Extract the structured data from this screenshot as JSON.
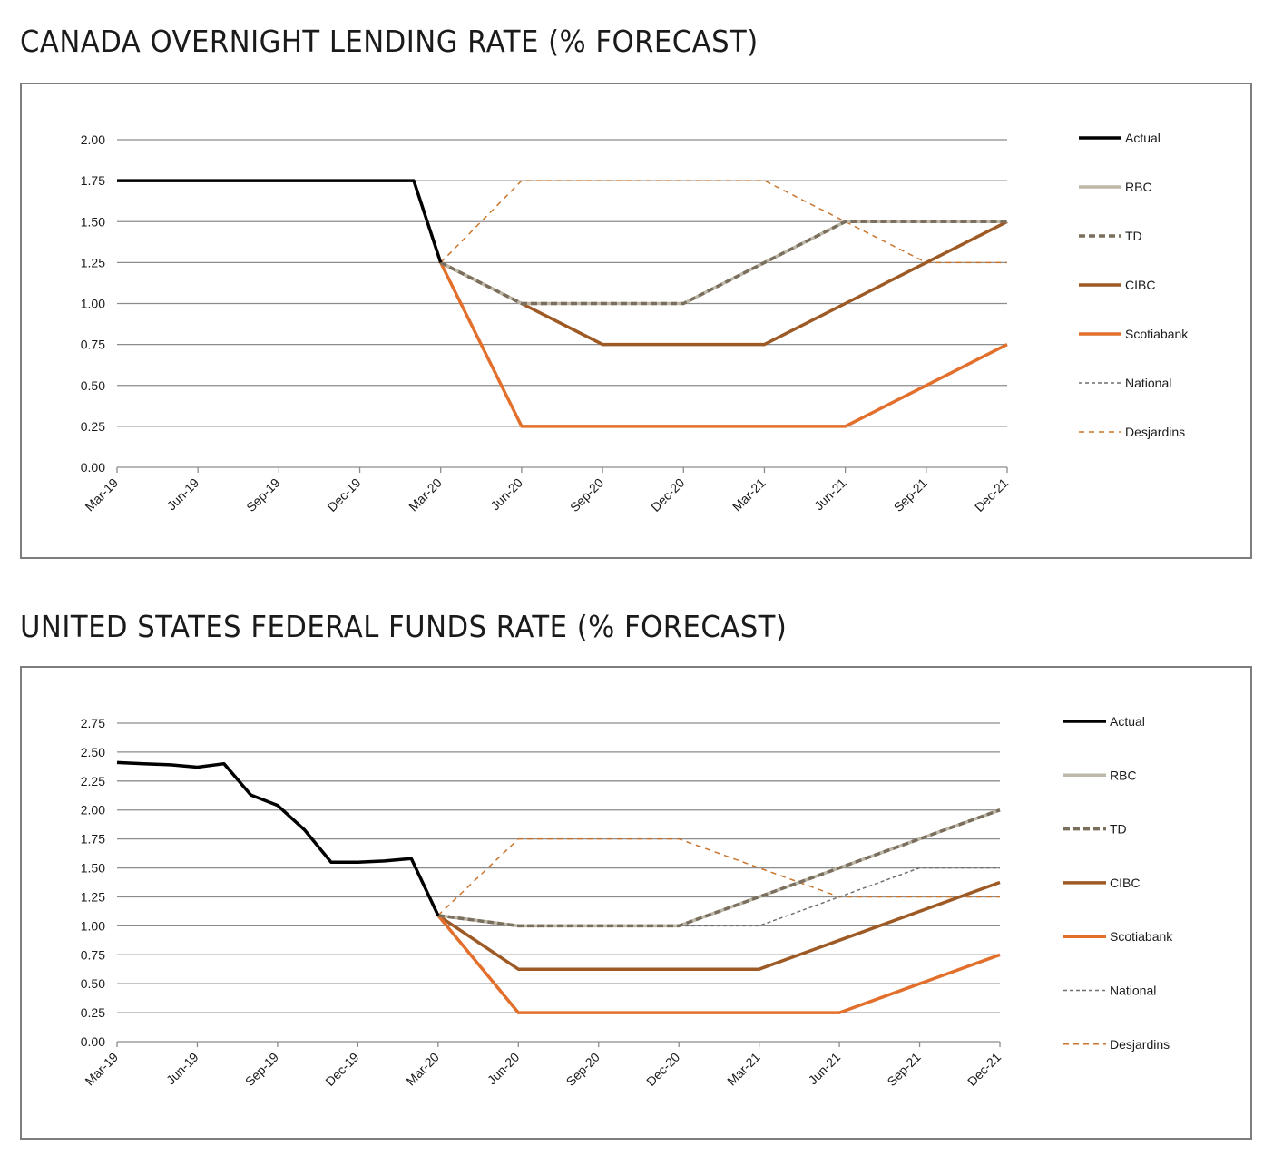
{
  "chart_data": [
    {
      "type": "line",
      "title": "CANADA OVERNIGHT LENDING RATE (% FORECAST)",
      "x": [
        "Mar-19",
        "Jun-19",
        "Sep-19",
        "Dec-19",
        "Mar-20",
        "Jun-20",
        "Sep-20",
        "Dec-20",
        "Mar-21",
        "Jun-21",
        "Sep-21",
        "Dec-21"
      ],
      "ylim": [
        0,
        2
      ],
      "yticks": [
        "0.00",
        "0.25",
        "0.50",
        "0.75",
        "1.00",
        "1.25",
        "1.50",
        "1.75",
        "2.00"
      ],
      "grid": true,
      "legend_position": "right",
      "series": [
        {
          "name": "Actual",
          "color": "#000000",
          "style": "solid",
          "points": [
            [
              "Mar-19",
              1.75
            ],
            [
              "Feb-20",
              1.75
            ],
            [
              "Mar-20",
              1.25
            ]
          ]
        },
        {
          "name": "RBC",
          "color": "#bdb8a8",
          "style": "solid",
          "points": [
            [
              "Mar-20",
              1.25
            ],
            [
              "Jun-20",
              1.0
            ],
            [
              "Sep-20",
              1.0
            ],
            [
              "Dec-20",
              1.0
            ],
            [
              "Mar-21",
              1.25
            ],
            [
              "Jun-21",
              1.5
            ],
            [
              "Sep-21",
              1.5
            ],
            [
              "Dec-21",
              1.5
            ]
          ]
        },
        {
          "name": "TD",
          "color": "#7a6e5d",
          "style": "dashed",
          "points": [
            [
              "Mar-20",
              1.25
            ],
            [
              "Jun-20",
              1.0
            ],
            [
              "Sep-20",
              1.0
            ],
            [
              "Dec-20",
              1.0
            ],
            [
              "Mar-21",
              1.25
            ],
            [
              "Jun-21",
              1.5
            ],
            [
              "Sep-21",
              1.5
            ],
            [
              "Dec-21",
              1.5
            ]
          ]
        },
        {
          "name": "CIBC",
          "color": "#9e5a24",
          "style": "solid",
          "points": [
            [
              "Mar-20",
              1.25
            ],
            [
              "Jun-20",
              1.0
            ],
            [
              "Sep-20",
              0.75
            ],
            [
              "Dec-20",
              0.75
            ],
            [
              "Mar-21",
              0.75
            ],
            [
              "Jun-21",
              1.0
            ],
            [
              "Sep-21",
              1.25
            ],
            [
              "Dec-21",
              1.5
            ]
          ]
        },
        {
          "name": "Scotiabank",
          "color": "#e2702c",
          "style": "solid",
          "points": [
            [
              "Mar-20",
              1.25
            ],
            [
              "Jun-20",
              0.25
            ],
            [
              "Sep-20",
              0.25
            ],
            [
              "Dec-20",
              0.25
            ],
            [
              "Mar-21",
              0.25
            ],
            [
              "Jun-21",
              0.25
            ],
            [
              "Sep-21",
              0.5
            ],
            [
              "Dec-21",
              0.75
            ]
          ]
        },
        {
          "name": "National",
          "color": "#6f6f6f",
          "style": "dotted",
          "points": []
        },
        {
          "name": "Desjardins",
          "color": "#c9752d",
          "style": "dashed-thin",
          "points": [
            [
              "Mar-20",
              1.25
            ],
            [
              "Jun-20",
              1.75
            ],
            [
              "Sep-20",
              1.75
            ],
            [
              "Dec-20",
              1.75
            ],
            [
              "Mar-21",
              1.75
            ],
            [
              "Jun-21",
              1.5
            ],
            [
              "Sep-21",
              1.25
            ],
            [
              "Dec-21",
              1.25
            ]
          ]
        }
      ]
    },
    {
      "type": "line",
      "title": "UNITED STATES FEDERAL FUNDS RATE (% FORECAST)",
      "x": [
        "Mar-19",
        "Jun-19",
        "Sep-19",
        "Dec-19",
        "Mar-20",
        "Jun-20",
        "Sep-20",
        "Dec-20",
        "Mar-21",
        "Jun-21",
        "Sep-21",
        "Dec-21"
      ],
      "ylim": [
        0,
        2.75
      ],
      "yticks": [
        "0.00",
        "0.25",
        "0.50",
        "0.75",
        "1.00",
        "1.25",
        "1.50",
        "1.75",
        "2.00",
        "2.25",
        "2.50",
        "2.75"
      ],
      "grid": true,
      "legend_position": "right",
      "series": [
        {
          "name": "Actual",
          "color": "#000000",
          "style": "solid",
          "points": [
            [
              "Mar-19",
              2.41
            ],
            [
              "Apr-19",
              2.4
            ],
            [
              "May-19",
              2.39
            ],
            [
              "Jun-19",
              2.37
            ],
            [
              "Jul-19",
              2.4
            ],
            [
              "Aug-19",
              2.13
            ],
            [
              "Sep-19",
              2.04
            ],
            [
              "Oct-19",
              1.83
            ],
            [
              "Nov-19",
              1.55
            ],
            [
              "Dec-19",
              1.55
            ],
            [
              "Jan-20",
              1.56
            ],
            [
              "Feb-20",
              1.58
            ],
            [
              "Mar-20",
              1.09
            ]
          ]
        },
        {
          "name": "RBC",
          "color": "#bdb8a8",
          "style": "solid",
          "points": [
            [
              "Mar-20",
              1.09
            ],
            [
              "Jun-20",
              1.0
            ],
            [
              "Sep-20",
              1.0
            ],
            [
              "Dec-20",
              1.0
            ],
            [
              "Mar-21",
              1.25
            ],
            [
              "Jun-21",
              1.5
            ],
            [
              "Sep-21",
              1.75
            ],
            [
              "Dec-21",
              2.0
            ]
          ]
        },
        {
          "name": "TD",
          "color": "#7a6e5d",
          "style": "dashed",
          "points": [
            [
              "Mar-20",
              1.09
            ],
            [
              "Jun-20",
              1.0
            ],
            [
              "Sep-20",
              1.0
            ],
            [
              "Dec-20",
              1.0
            ],
            [
              "Mar-21",
              1.25
            ],
            [
              "Jun-21",
              1.5
            ],
            [
              "Sep-21",
              1.75
            ],
            [
              "Dec-21",
              2.0
            ]
          ]
        },
        {
          "name": "CIBC",
          "color": "#9e5a24",
          "style": "solid",
          "points": [
            [
              "Mar-20",
              1.09
            ],
            [
              "Jun-20",
              0.625
            ],
            [
              "Sep-20",
              0.625
            ],
            [
              "Dec-20",
              0.625
            ],
            [
              "Mar-21",
              0.625
            ],
            [
              "Jun-21",
              0.875
            ],
            [
              "Sep-21",
              1.125
            ],
            [
              "Dec-21",
              1.375
            ]
          ]
        },
        {
          "name": "Scotiabank",
          "color": "#e2702c",
          "style": "solid",
          "points": [
            [
              "Mar-20",
              1.09
            ],
            [
              "Jun-20",
              0.25
            ],
            [
              "Sep-20",
              0.25
            ],
            [
              "Dec-20",
              0.25
            ],
            [
              "Mar-21",
              0.25
            ],
            [
              "Jun-21",
              0.25
            ],
            [
              "Sep-21",
              0.5
            ],
            [
              "Dec-21",
              0.75
            ]
          ]
        },
        {
          "name": "National",
          "color": "#6f6f6f",
          "style": "dotted",
          "points": [
            [
              "Mar-20",
              1.09
            ],
            [
              "Jun-20",
              1.0
            ],
            [
              "Sep-20",
              1.0
            ],
            [
              "Dec-20",
              1.0
            ],
            [
              "Mar-21",
              1.0
            ],
            [
              "Jun-21",
              1.25
            ],
            [
              "Sep-21",
              1.5
            ],
            [
              "Dec-21",
              1.5
            ]
          ]
        },
        {
          "name": "Desjardins",
          "color": "#c9752d",
          "style": "dashed-thin",
          "points": [
            [
              "Mar-20",
              1.09
            ],
            [
              "Jun-20",
              1.75
            ],
            [
              "Sep-20",
              1.75
            ],
            [
              "Dec-20",
              1.75
            ],
            [
              "Mar-21",
              1.5
            ],
            [
              "Jun-21",
              1.25
            ],
            [
              "Sep-21",
              1.25
            ],
            [
              "Dec-21",
              1.25
            ]
          ]
        }
      ]
    }
  ]
}
